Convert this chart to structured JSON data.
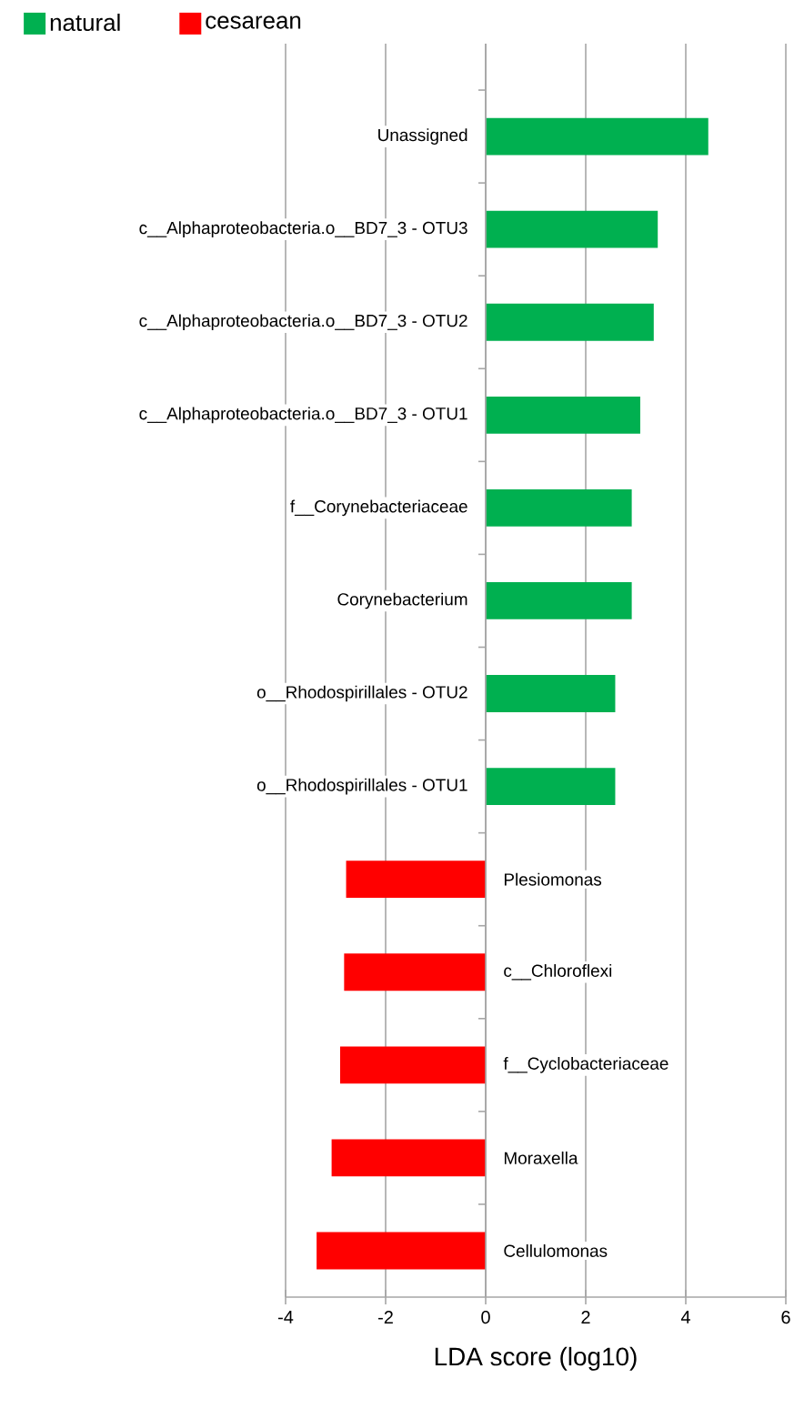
{
  "chart_data": {
    "type": "bar",
    "orientation": "horizontal",
    "xlabel": "LDA score (log10)",
    "categories": [
      "Unassigned",
      "c__Alphaproteobacteria.o__BD7_3 - OTU3",
      "c__Alphaproteobacteria.o__BD7_3 - OTU2",
      "c__Alphaproteobacteria.o__BD7_3 - OTU1",
      "f__Corynebacteriaceae",
      "Corynebacterium",
      "o__Rhodospirillales - OTU2",
      "o__Rhodospirillales - OTU1",
      "Plesiomonas",
      "c__Chloroflexi",
      "f__Cyclobacteriaceae",
      "Moraxella",
      "Cellulomonas"
    ],
    "series": [
      {
        "name": "natural",
        "color": "#00b050",
        "values": [
          4.45,
          3.44,
          3.36,
          3.09,
          2.92,
          2.92,
          2.59,
          2.59,
          null,
          null,
          null,
          null,
          null
        ]
      },
      {
        "name": "cesarean",
        "color": "#ff0000",
        "values": [
          null,
          null,
          null,
          null,
          null,
          null,
          null,
          null,
          -2.79,
          -2.83,
          -2.91,
          -3.08,
          -3.38
        ]
      }
    ],
    "xlim": [
      -4,
      6
    ],
    "xticks": [
      -4,
      -2,
      0,
      2,
      4,
      6
    ],
    "grid": "x",
    "legend": "top left"
  }
}
